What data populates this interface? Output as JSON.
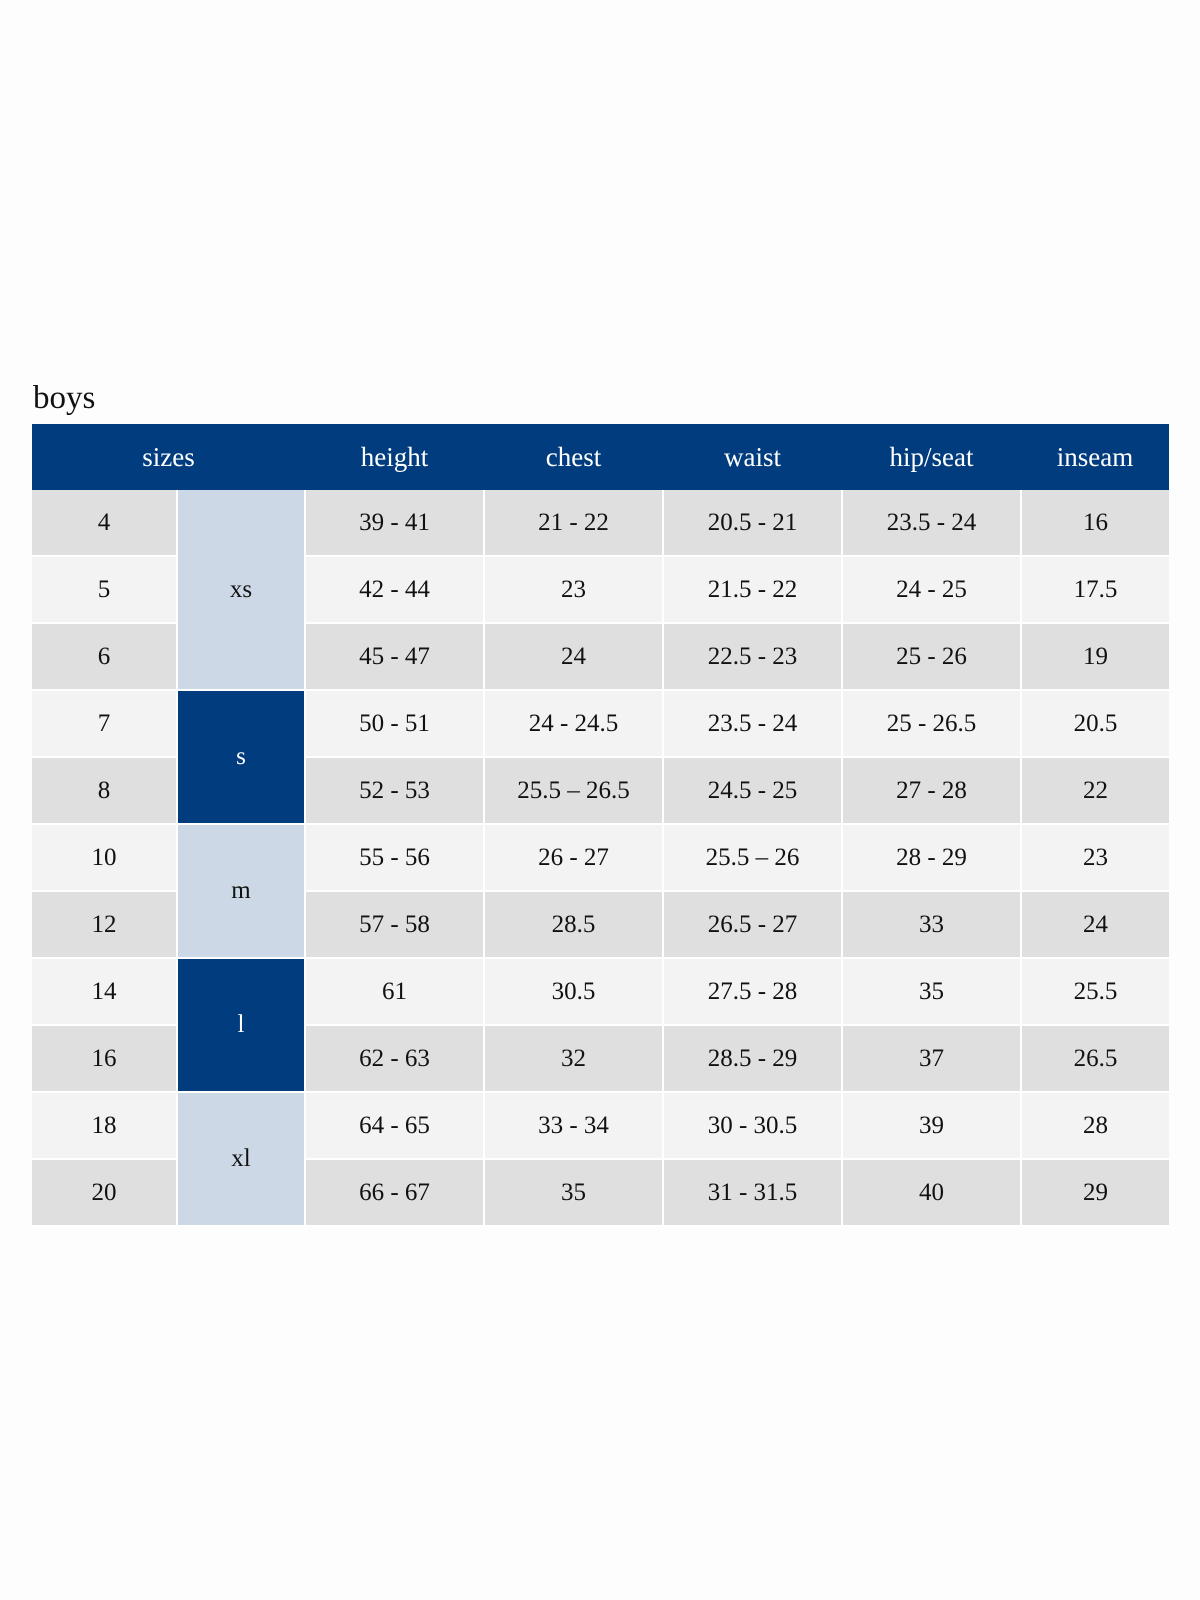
{
  "title": "boys",
  "colors": {
    "header_bg": "#003c7e",
    "row_dark": "#dfdfdf",
    "row_light": "#f3f3f3",
    "letter_light": "#ccd8e6",
    "letter_dark": "#003c7e"
  },
  "headers": {
    "sizes": "sizes",
    "height": "height",
    "chest": "chest",
    "waist": "waist",
    "hip_seat": "hip/seat",
    "inseam": "inseam"
  },
  "letters": [
    "xs",
    "s",
    "m",
    "l",
    "xl"
  ],
  "rows": [
    {
      "size": "4",
      "height": "39 - 41",
      "chest": "21 - 22",
      "waist": "20.5 - 21",
      "hip": "23.5 - 24",
      "inseam": "16"
    },
    {
      "size": "5",
      "height": "42 - 44",
      "chest": "23",
      "waist": "21.5 - 22",
      "hip": "24 - 25",
      "inseam": "17.5"
    },
    {
      "size": "6",
      "height": "45 - 47",
      "chest": "24",
      "waist": "22.5 - 23",
      "hip": "25 - 26",
      "inseam": "19"
    },
    {
      "size": "7",
      "height": "50 - 51",
      "chest": "24 - 24.5",
      "waist": "23.5 - 24",
      "hip": "25 - 26.5",
      "inseam": "20.5"
    },
    {
      "size": "8",
      "height": "52 - 53",
      "chest": "25.5 – 26.5",
      "waist": "24.5 - 25",
      "hip": "27 - 28",
      "inseam": "22"
    },
    {
      "size": "10",
      "height": "55 - 56",
      "chest": "26 - 27",
      "waist": "25.5 – 26",
      "hip": "28 - 29",
      "inseam": "23"
    },
    {
      "size": "12",
      "height": "57 - 58",
      "chest": "28.5",
      "waist": "26.5 - 27",
      "hip": "33",
      "inseam": "24"
    },
    {
      "size": "14",
      "height": "61",
      "chest": "30.5",
      "waist": "27.5 - 28",
      "hip": "35",
      "inseam": "25.5"
    },
    {
      "size": "16",
      "height": "62 - 63",
      "chest": "32",
      "waist": "28.5 - 29",
      "hip": "37",
      "inseam": "26.5"
    },
    {
      "size": "18",
      "height": "64 - 65",
      "chest": "33 - 34",
      "waist": "30 - 30.5",
      "hip": "39",
      "inseam": "28"
    },
    {
      "size": "20",
      "height": "66 - 67",
      "chest": "35",
      "waist": "31 - 31.5",
      "hip": "40",
      "inseam": "29"
    }
  ]
}
